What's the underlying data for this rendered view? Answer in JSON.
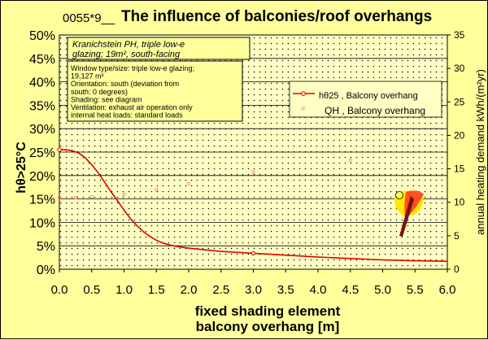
{
  "header": {
    "code": "0055*9__",
    "title": "The influence of balconies/roof overhangs"
  },
  "case_box": {
    "line1": "Kranichstein PH, triple low-e",
    "line2": "glazing; 19m², south-facing"
  },
  "info_box": {
    "lines": [
      "Window type/size: triple low-e glazing;",
      "19,127 m²",
      "Orientation: south (deviation from",
      "south: 0 degrees)",
      "Shading: see diagram",
      "Ventilation: exhaust air operation only",
      "internal heat loads: standard loads"
    ]
  },
  "colors": {
    "background": "#ffff9c",
    "plot_background": "#ffffc4",
    "red": "#e00000",
    "pink": "#ff8080",
    "logo_yellow": "#ffe800",
    "logo_red": "#ff5020"
  },
  "chart_data": {
    "type": "line",
    "title": "The influence of balconies/roof overhangs",
    "xlabel": [
      "fixed shading element",
      "balcony overhang [m]"
    ],
    "ylabel_left": "hθ>25°C",
    "ylabel_right": "annual heating demand kWh/(m²yr)",
    "xlim": [
      0,
      6
    ],
    "ylim_left": [
      0,
      50
    ],
    "ylim_right": [
      0,
      35
    ],
    "x_ticks": [
      "0.0",
      "0.5",
      "1.0",
      "1.5",
      "2.0",
      "2.5",
      "3.0",
      "3.5",
      "4.0",
      "4.5",
      "5.0",
      "5.5",
      "6.0"
    ],
    "y_left_ticks": [
      "0%",
      "5%",
      "10%",
      "15%",
      "20%",
      "25%",
      "30%",
      "35%",
      "40%",
      "45%",
      "50%"
    ],
    "y_right_ticks": [
      "0",
      "5",
      "10",
      "15",
      "20",
      "25",
      "30",
      "35"
    ],
    "grid": true,
    "legend": [
      {
        "label": "hθ25",
        "suffix": " , Balcony overhang"
      },
      {
        "label": "QH",
        "suffix": " , Balcony overhang"
      }
    ],
    "series": [
      {
        "name": "hθ25 , Balcony overhang",
        "axis": "left",
        "x": [
          0,
          0.1,
          0.2,
          0.3,
          0.4,
          0.5,
          0.6,
          0.7,
          0.8,
          0.9,
          1.0,
          1.1,
          1.2,
          1.3,
          1.4,
          1.5,
          1.6,
          1.7,
          1.8,
          2.0,
          2.5,
          3.0,
          3.5,
          4.0,
          4.5,
          5.0,
          5.5,
          6.0
        ],
        "values": [
          25.5,
          25.5,
          25.3,
          24.8,
          23.8,
          22.3,
          20.6,
          18.6,
          16.5,
          14.6,
          12.6,
          10.8,
          9.3,
          8.0,
          7.0,
          6.2,
          5.6,
          5.2,
          4.9,
          4.5,
          3.8,
          3.4,
          3.0,
          2.6,
          2.3,
          2.0,
          1.8,
          1.7
        ]
      },
      {
        "name": "QH , Balcony overhang",
        "axis": "right",
        "x": [
          0,
          0.25,
          0.5,
          1.0,
          1.5,
          2.0,
          3.0,
          4.5
        ],
        "values": [
          10.7,
          10.7,
          10.8,
          11.2,
          11.9,
          12.8,
          14.5,
          16.3
        ]
      }
    ]
  }
}
